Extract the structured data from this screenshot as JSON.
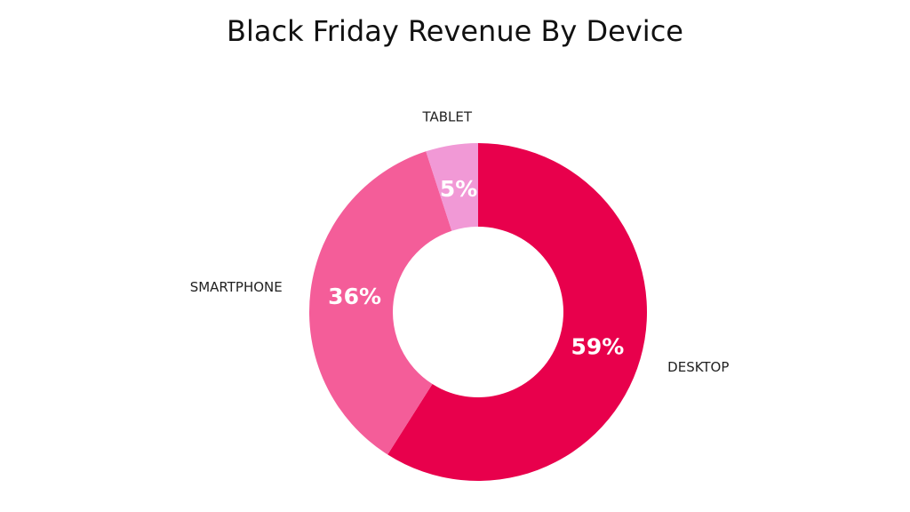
{
  "chart_data": {
    "type": "pie",
    "variant": "donut",
    "title": "Black Friday Revenue By Device",
    "categories": [
      "DESKTOP",
      "SMARTPHONE",
      "TABLET"
    ],
    "values": [
      59,
      36,
      5
    ],
    "value_labels": [
      "59%",
      "36%",
      "5%"
    ],
    "unit": "%",
    "colors": [
      "#e8004c",
      "#f45d99",
      "#f199d6"
    ],
    "legend": "none",
    "grid": false
  }
}
